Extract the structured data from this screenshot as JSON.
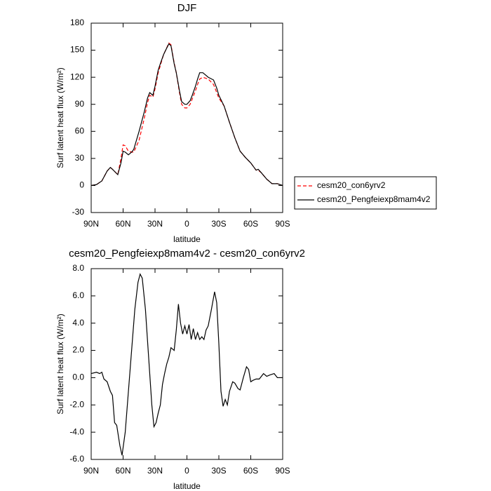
{
  "chart_data": [
    {
      "type": "line",
      "title": "DJF",
      "xlabel": "latitude",
      "ylabel": "Surf latent heat flux (W/m²)",
      "x": [
        90,
        85,
        80,
        75,
        72,
        70,
        65,
        62,
        60,
        58,
        55,
        52,
        50,
        45,
        40,
        37,
        35,
        32,
        30,
        27,
        25,
        22,
        20,
        17,
        15,
        12,
        10,
        7,
        5,
        2,
        0,
        -3,
        -5,
        -8,
        -10,
        -12,
        -15,
        -20,
        -25,
        -28,
        -30,
        -35,
        -40,
        -45,
        -50,
        -55,
        -60,
        -65,
        -67,
        -70,
        -75,
        -80,
        -85,
        -90
      ],
      "series": [
        {
          "name": "cesm20_con6yrv2",
          "color": "#ff0000",
          "style": "dashed",
          "values": [
            0,
            1,
            5,
            16,
            20,
            18,
            12,
            30,
            45,
            44,
            38,
            37,
            37,
            50,
            75,
            92,
            100,
            98,
            107,
            125,
            133,
            145,
            150,
            158,
            156,
            136,
            125,
            103,
            90,
            86,
            86,
            90,
            96,
            105,
            112,
            118,
            120,
            118,
            112,
            103,
            97,
            88,
            70,
            53,
            38,
            31,
            25,
            17,
            17,
            14,
            7,
            2,
            2,
            0
          ]
        },
        {
          "name": "cesm20_Pengfeiexp8mam4v2",
          "color": "#000000",
          "style": "solid",
          "values": [
            0,
            1,
            5,
            16,
            20,
            18,
            12,
            25,
            38,
            37,
            34,
            37,
            40,
            60,
            82,
            97,
            103,
            100,
            110,
            128,
            135,
            145,
            150,
            157,
            155,
            135,
            125,
            105,
            93,
            90,
            90,
            94,
            100,
            110,
            118,
            125,
            125,
            120,
            117,
            108,
            100,
            88,
            70,
            53,
            38,
            31,
            25,
            17,
            18,
            14,
            7,
            2,
            2,
            0
          ]
        }
      ],
      "xlim": [
        90,
        -90
      ],
      "xticks": [
        {
          "value": 90,
          "label": "90N"
        },
        {
          "value": 60,
          "label": "60N"
        },
        {
          "value": 30,
          "label": "30N"
        },
        0,
        {
          "value": -30,
          "label": "30S"
        },
        {
          "value": -60,
          "label": "60S"
        },
        {
          "value": -90,
          "label": "90S"
        }
      ],
      "ylim": [
        -30,
        180
      ],
      "yticks": [
        -30,
        0,
        30,
        60,
        90,
        120,
        150,
        180
      ],
      "legend": "right"
    },
    {
      "type": "line",
      "title": "cesm20_Pengfeiexp8mam4v2 - cesm20_con6yrv2",
      "xlabel": "latitude",
      "ylabel": "Surf latent heat flux (W/m²)",
      "x": [
        90,
        85,
        82,
        80,
        78,
        75,
        72,
        70,
        68,
        66,
        63,
        61,
        58,
        55,
        52,
        49,
        46,
        44,
        42,
        39,
        36,
        33,
        31,
        29,
        27,
        25,
        23,
        21,
        19,
        17,
        15,
        12,
        10,
        8,
        6,
        4,
        2,
        0,
        -2,
        -4,
        -6,
        -8,
        -10,
        -12,
        -14,
        -16,
        -18,
        -20,
        -23,
        -26,
        -28,
        -30,
        -32,
        -34,
        -36,
        -38,
        -40,
        -43,
        -45,
        -48,
        -50,
        -53,
        -56,
        -58,
        -60,
        -62,
        -65,
        -68,
        -72,
        -75,
        -78,
        -82,
        -85,
        -90
      ],
      "series": [
        {
          "name": "cesm20_Pengfeiexp8mam4v2 - cesm20_con6yrv2",
          "color": "#000000",
          "style": "solid",
          "values": [
            0.3,
            0.4,
            0.3,
            0.4,
            -0.1,
            -0.3,
            -1.0,
            -1.3,
            -3.3,
            -3.5,
            -5.0,
            -5.7,
            -4.0,
            -1.0,
            2.0,
            5.0,
            7.0,
            7.6,
            7.3,
            5.0,
            1.5,
            -2.0,
            -3.6,
            -3.3,
            -2.6,
            -2.0,
            -0.5,
            0.3,
            1.0,
            1.5,
            2.2,
            2.0,
            3.5,
            5.4,
            4.0,
            3.2,
            3.8,
            3.2,
            3.9,
            2.8,
            3.6,
            2.8,
            3.3,
            2.8,
            3.0,
            2.8,
            3.5,
            3.8,
            5.0,
            6.3,
            5.5,
            2.5,
            -1.0,
            -2.1,
            -1.6,
            -2.0,
            -1.0,
            -0.3,
            -0.4,
            -0.8,
            -0.9,
            0.0,
            0.8,
            0.6,
            -0.3,
            -0.2,
            -0.1,
            -0.1,
            0.3,
            0.1,
            0.2,
            0.3,
            0.0,
            0.0
          ]
        }
      ],
      "xlim": [
        90,
        -90
      ],
      "xticks": [
        {
          "value": 90,
          "label": "90N"
        },
        {
          "value": 60,
          "label": "60N"
        },
        {
          "value": 30,
          "label": "30N"
        },
        0,
        {
          "value": -30,
          "label": "30S"
        },
        {
          "value": -60,
          "label": "60S"
        },
        {
          "value": -90,
          "label": "90S"
        }
      ],
      "ylim": [
        -6,
        8
      ],
      "yticks": [
        {
          "value": -6,
          "label": "-6.0"
        },
        {
          "value": -4,
          "label": "-4.0"
        },
        {
          "value": -2,
          "label": "-2.0"
        },
        {
          "value": 0,
          "label": "0.0"
        },
        {
          "value": 2,
          "label": "2.0"
        },
        {
          "value": 4,
          "label": "4.0"
        },
        {
          "value": 6,
          "label": "6.0"
        },
        {
          "value": 8,
          "label": "8.0"
        }
      ]
    }
  ]
}
